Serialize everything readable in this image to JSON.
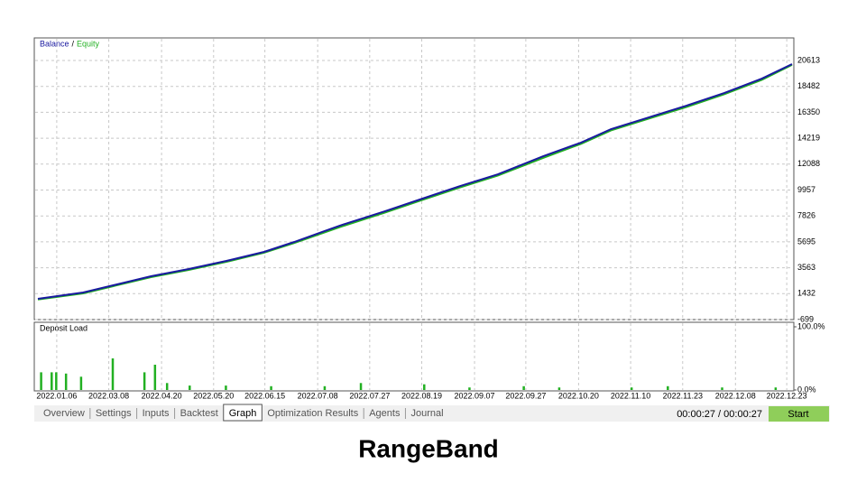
{
  "chart_data": [
    {
      "type": "line",
      "legend_separator": "/",
      "x": [
        0,
        6,
        10,
        15,
        20,
        25,
        30,
        34,
        40,
        46,
        51,
        56,
        61,
        67,
        72,
        76,
        81,
        86,
        91,
        96,
        100
      ],
      "series": [
        {
          "name": "Balance",
          "color": "#1a1aa0",
          "values": [
            1009,
            1529,
            2123,
            2865,
            3459,
            4127,
            4870,
            5687,
            7023,
            8211,
            9251,
            10290,
            11255,
            12740,
            13854,
            14968,
            15933,
            16898,
            17938,
            19126,
            20314
          ]
        },
        {
          "name": "Equity",
          "color": "#22b022",
          "values": [
            950,
            1450,
            2050,
            2790,
            3380,
            4050,
            4800,
            5600,
            6900,
            8100,
            9150,
            10180,
            11150,
            12600,
            13750,
            14860,
            15830,
            16790,
            17830,
            19020,
            20250
          ]
        }
      ],
      "xlim": [
        0,
        100
      ],
      "ylim": [
        -699,
        22470
      ],
      "yticks": [
        -699,
        1432,
        3563,
        5695,
        7826,
        9957,
        12088,
        14219,
        16350,
        18482,
        20613
      ],
      "grid": true
    },
    {
      "type": "bar",
      "title": "Deposit Load",
      "color": "#22b022",
      "x": [
        0.4,
        1.8,
        2.4,
        3.7,
        5.7,
        9.9,
        14.1,
        15.5,
        17.1,
        20.1,
        24.9,
        30.9,
        38.0,
        42.8,
        51.2,
        57.2,
        64.4,
        69.1,
        78.7,
        83.5,
        90.7,
        97.8
      ],
      "values": [
        28,
        28,
        28,
        26,
        21,
        50,
        28,
        40,
        11,
        7,
        7,
        6,
        6,
        11,
        9,
        4,
        6,
        4,
        4,
        6,
        4,
        4
      ],
      "xlim": [
        0,
        100
      ],
      "ylim": [
        0,
        100
      ],
      "yticks": [
        {
          "value": 0,
          "label": "0.0%"
        },
        {
          "value": 100,
          "label": "100.0%"
        }
      ],
      "xticks": [
        {
          "value": 2.5,
          "label": "2022.01.06"
        },
        {
          "value": 9.4,
          "label": "2022.03.08"
        },
        {
          "value": 16.4,
          "label": "2022.04.20"
        },
        {
          "value": 23.3,
          "label": "2022.05.20"
        },
        {
          "value": 30.1,
          "label": "2022.06.15"
        },
        {
          "value": 37.1,
          "label": "2022.07.08"
        },
        {
          "value": 44.0,
          "label": "2022.07.27"
        },
        {
          "value": 50.9,
          "label": "2022.08.19"
        },
        {
          "value": 57.9,
          "label": "2022.09.07"
        },
        {
          "value": 64.7,
          "label": "2022.09.27"
        },
        {
          "value": 71.7,
          "label": "2022.10.20"
        },
        {
          "value": 78.6,
          "label": "2022.11.10"
        },
        {
          "value": 85.5,
          "label": "2022.11.23"
        },
        {
          "value": 92.5,
          "label": "2022.12.08"
        },
        {
          "value": 99.3,
          "label": "2022.12.23"
        }
      ]
    }
  ],
  "tabs": [
    "Overview",
    "Settings",
    "Inputs",
    "Backtest",
    "Graph",
    "Optimization Results",
    "Agents",
    "Journal"
  ],
  "timer": "00:00:27 / 00:00:27",
  "button": "Start",
  "caption": "RangeBand"
}
